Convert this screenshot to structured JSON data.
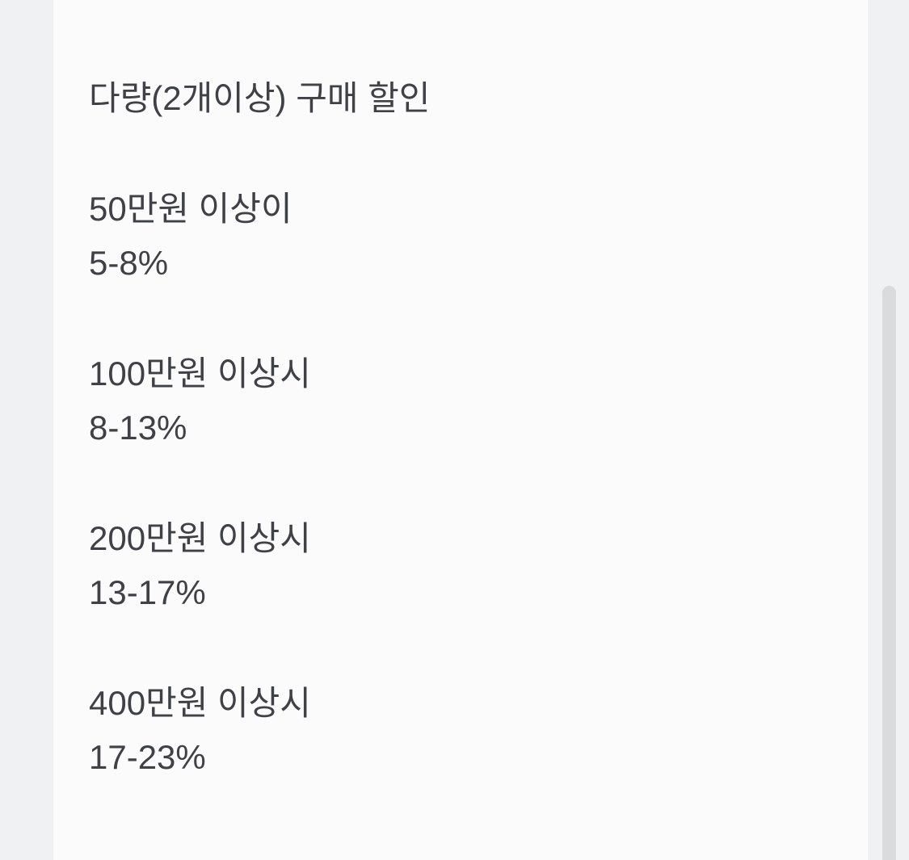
{
  "page": {
    "title": "다량(2개이상) 구매 할인"
  },
  "discount_tiers": [
    {
      "condition": "50만원 이상이",
      "discount": "5-8%"
    },
    {
      "condition": "100만원 이상시",
      "discount": "8-13%"
    },
    {
      "condition": "200만원 이상시",
      "discount": "13-17%"
    },
    {
      "condition": "400만원 이상시",
      "discount": "17-23%"
    }
  ],
  "colors": {
    "text": "#3f4145",
    "content_background": "#fbfbfc",
    "gutter_background": "#f0f1f2",
    "scrollbar_thumb": "#d9dbdd"
  }
}
